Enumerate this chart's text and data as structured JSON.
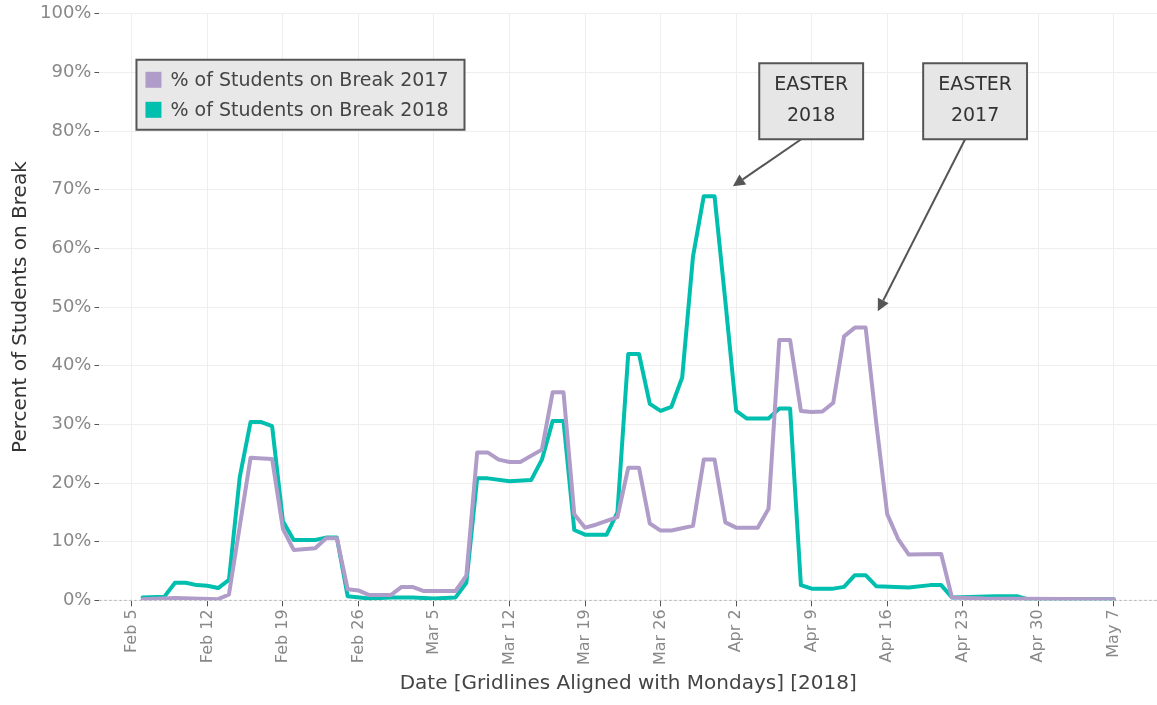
{
  "chart_data": {
    "type": "line",
    "xlabel": "Date [Gridlines Aligned with Mondays] [2018]",
    "ylabel": "Percent of Students on Break",
    "xlim": [
      "2018-02-02",
      "2018-05-11"
    ],
    "xticks": [
      {
        "value": "2018-02-05",
        "label": "Feb 5"
      },
      {
        "value": "2018-02-12",
        "label": "Feb 12"
      },
      {
        "value": "2018-02-19",
        "label": "Feb 19"
      },
      {
        "value": "2018-02-26",
        "label": "Feb 26"
      },
      {
        "value": "2018-03-05",
        "label": "Mar 5"
      },
      {
        "value": "2018-03-12",
        "label": "Mar 12"
      },
      {
        "value": "2018-03-19",
        "label": "Mar 19"
      },
      {
        "value": "2018-03-26",
        "label": "Mar 26"
      },
      {
        "value": "2018-04-02",
        "label": "Apr 2"
      },
      {
        "value": "2018-04-09",
        "label": "Apr 9"
      },
      {
        "value": "2018-04-16",
        "label": "Apr 16"
      },
      {
        "value": "2018-04-23",
        "label": "Apr 23"
      },
      {
        "value": "2018-04-30",
        "label": "Apr 30"
      },
      {
        "value": "2018-05-07",
        "label": "May 7"
      }
    ],
    "ylim": [
      0,
      100
    ],
    "yticks": [
      {
        "value": 0,
        "label": "0%"
      },
      {
        "value": 10,
        "label": "10%"
      },
      {
        "value": 20,
        "label": "20%"
      },
      {
        "value": 30,
        "label": "30%"
      },
      {
        "value": 40,
        "label": "40%"
      },
      {
        "value": 50,
        "label": "50%"
      },
      {
        "value": 60,
        "label": "60%"
      },
      {
        "value": 70,
        "label": "70%"
      },
      {
        "value": 80,
        "label": "80%"
      },
      {
        "value": 90,
        "label": "90%"
      },
      {
        "value": 100,
        "label": "100%"
      }
    ],
    "grid": true,
    "legend": "top left",
    "marker": "none",
    "line_style": "solid",
    "ref_lines": [
      {
        "axis": "y",
        "value": 0,
        "color": "#aaaaaa",
        "line_style": "dotted"
      }
    ],
    "annotations": [
      "EASTER 2018",
      "EASTER 2017"
    ],
    "series": [
      {
        "name": "% of Students on Break 2017",
        "color": "#b09cc8",
        "x": [
          "2018-02-06",
          "2018-02-09",
          "2018-02-13",
          "2018-02-14",
          "2018-02-16",
          "2018-02-18",
          "2018-02-19",
          "2018-02-20",
          "2018-02-22",
          "2018-02-23",
          "2018-02-24",
          "2018-02-25",
          "2018-02-26",
          "2018-02-27",
          "2018-03-01",
          "2018-03-02",
          "2018-03-03",
          "2018-03-04",
          "2018-03-07",
          "2018-03-08",
          "2018-03-09",
          "2018-03-10",
          "2018-03-11",
          "2018-03-12",
          "2018-03-13",
          "2018-03-15",
          "2018-03-16",
          "2018-03-17",
          "2018-03-18",
          "2018-03-19",
          "2018-03-20",
          "2018-03-22",
          "2018-03-23",
          "2018-03-24",
          "2018-03-25",
          "2018-03-26",
          "2018-03-27",
          "2018-03-29",
          "2018-03-30",
          "2018-03-31",
          "2018-04-01",
          "2018-04-02",
          "2018-04-04",
          "2018-04-05",
          "2018-04-06",
          "2018-04-07",
          "2018-04-08",
          "2018-04-09",
          "2018-04-10",
          "2018-04-11",
          "2018-04-12",
          "2018-04-13",
          "2018-04-14",
          "2018-04-15",
          "2018-04-16",
          "2018-04-17",
          "2018-04-18",
          "2018-04-21",
          "2018-04-22",
          "2018-04-25",
          "2018-05-07"
        ],
        "values": [
          0.2,
          0.4,
          0.2,
          1,
          24.3,
          24.1,
          12.2,
          8.6,
          8.9,
          10.6,
          10.6,
          1.9,
          1.7,
          0.9,
          0.9,
          2.3,
          2.3,
          1.6,
          1.6,
          4.2,
          25.2,
          25.2,
          24,
          23.6,
          23.6,
          25.7,
          35.5,
          35.5,
          14.7,
          12.4,
          12.9,
          14.2,
          22.6,
          22.6,
          13.1,
          11.9,
          11.9,
          12.7,
          24,
          24,
          13.3,
          12.4,
          12.4,
          15.6,
          44.4,
          44.4,
          32.3,
          32.1,
          32.2,
          33.7,
          45,
          46.5,
          46.5,
          30,
          14.7,
          10.5,
          7.8,
          7.9,
          0.5,
          0.3,
          0.2
        ]
      },
      {
        "name": "% of Students on Break 2018",
        "color": "#00bfae",
        "x": [
          "2018-02-06",
          "2018-02-08",
          "2018-02-09",
          "2018-02-10",
          "2018-02-11",
          "2018-02-12",
          "2018-02-13",
          "2018-02-14",
          "2018-02-15",
          "2018-02-16",
          "2018-02-17",
          "2018-02-18",
          "2018-02-19",
          "2018-02-20",
          "2018-02-22",
          "2018-02-23",
          "2018-02-24",
          "2018-02-25",
          "2018-02-27",
          "2018-03-01",
          "2018-03-03",
          "2018-03-05",
          "2018-03-07",
          "2018-03-08",
          "2018-03-09",
          "2018-03-10",
          "2018-03-12",
          "2018-03-14",
          "2018-03-15",
          "2018-03-16",
          "2018-03-17",
          "2018-03-18",
          "2018-03-19",
          "2018-03-21",
          "2018-03-22",
          "2018-03-23",
          "2018-03-24",
          "2018-03-25",
          "2018-03-26",
          "2018-03-27",
          "2018-03-28",
          "2018-03-29",
          "2018-03-30",
          "2018-03-31",
          "2018-04-01",
          "2018-04-02",
          "2018-04-03",
          "2018-04-05",
          "2018-04-06",
          "2018-04-07",
          "2018-04-08",
          "2018-04-09",
          "2018-04-11",
          "2018-04-12",
          "2018-04-13",
          "2018-04-14",
          "2018-04-15",
          "2018-04-18",
          "2018-04-20",
          "2018-04-21",
          "2018-04-22",
          "2018-04-26",
          "2018-04-28",
          "2018-04-29",
          "2018-05-07"
        ],
        "values": [
          0.5,
          0.6,
          3,
          3,
          2.6,
          2.5,
          2.1,
          3.5,
          21,
          30.4,
          30.4,
          29.7,
          13.5,
          10.3,
          10.3,
          10.7,
          10.7,
          0.7,
          0.3,
          0.5,
          0.5,
          0.3,
          0.5,
          3,
          20.8,
          20.8,
          20.3,
          20.5,
          24,
          30.6,
          30.6,
          12,
          11.2,
          11.2,
          15,
          42,
          42,
          33.5,
          32.3,
          33,
          38,
          58.6,
          68.9,
          68.9,
          51,
          32.3,
          31,
          31,
          32.7,
          32.7,
          2.6,
          2,
          2,
          2.3,
          4.3,
          4.3,
          2.4,
          2.2,
          2.6,
          2.6,
          0.5,
          0.7,
          0.7,
          0.2,
          0.2
        ]
      }
    ]
  }
}
